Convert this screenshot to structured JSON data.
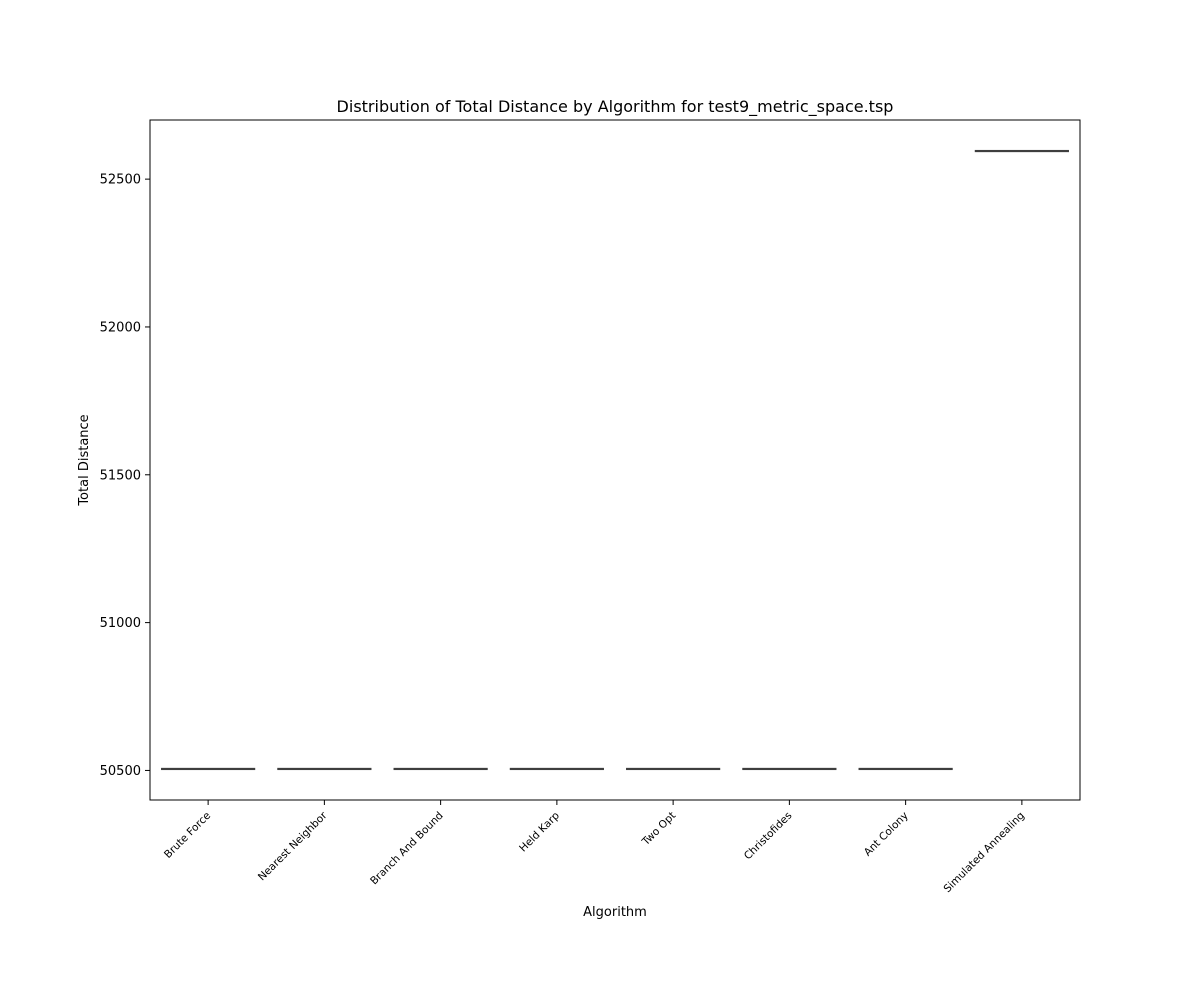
{
  "chart_data": {
    "type": "box",
    "title": "Distribution of Total Distance by Algorithm for test9_metric_space.tsp",
    "xlabel": "Algorithm",
    "ylabel": "Total Distance",
    "ylim": [
      50400,
      52700
    ],
    "yticks": [
      50500,
      51000,
      51500,
      52000,
      52500
    ],
    "categories": [
      "Brute Force",
      "Nearest Neighbor",
      "Branch And Bound",
      "Held Karp",
      "Two Opt",
      "Christofides",
      "Ant Colony",
      "Simulated Annealing"
    ],
    "values": [
      50505,
      50505,
      50505,
      50505,
      50505,
      50505,
      50505,
      52595
    ],
    "grid": false,
    "colors": {
      "box_line": "#3f3f3f",
      "axes": "#000000",
      "background": "#ffffff"
    }
  }
}
